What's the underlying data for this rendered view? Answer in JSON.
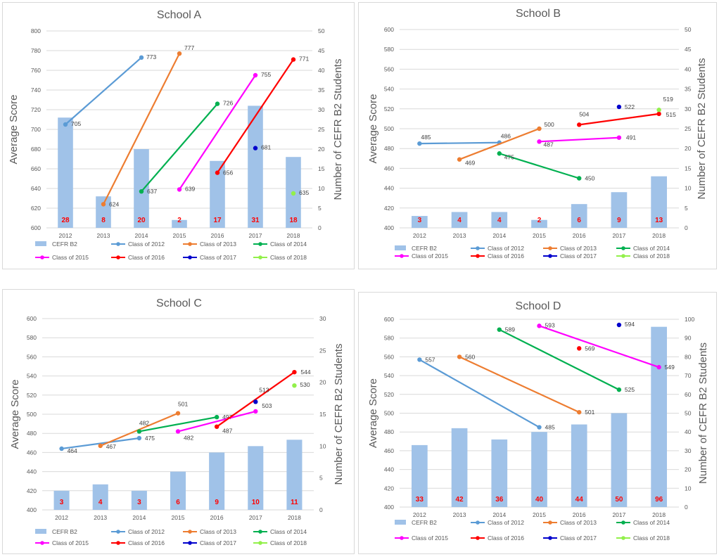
{
  "colors": {
    "bar": "#a0c2e8",
    "Class of 2012": "#5b9bd5",
    "Class of 2013": "#ed7d31",
    "Class of 2014": "#00b050",
    "Class of 2015": "#ff00ff",
    "Class of 2016": "#ff0000",
    "Class of 2017": "#0000cc",
    "Class of 2018": "#92f04a",
    "bar_label": "#ff0000"
  },
  "legend_items": [
    "CEFR B2",
    "Class of 2012",
    "Class of 2013",
    "Class of 2014",
    "Class of 2015",
    "Class of 2016",
    "Class of 2017",
    "Class of 2018"
  ],
  "chart_data": [
    {
      "type": "bar+line",
      "title": "School A",
      "categories": [
        "2012",
        "2013",
        "2014",
        "2015",
        "2016",
        "2017",
        "2018"
      ],
      "ylabel": "Average Score",
      "y2label": "Number of CEFR B2 Students",
      "ylim": [
        600,
        800
      ],
      "yticks": [
        600,
        620,
        640,
        660,
        680,
        700,
        720,
        740,
        760,
        780,
        800
      ],
      "y2lim": [
        0,
        50
      ],
      "y2ticks": [
        0,
        5,
        10,
        15,
        20,
        25,
        30,
        35,
        40,
        45,
        50
      ],
      "bars": {
        "name": "CEFR B2",
        "values": [
          28,
          8,
          20,
          2,
          17,
          31,
          18
        ]
      },
      "series": [
        {
          "name": "Class of 2012",
          "points": [
            [
              "2012",
              705
            ],
            [
              "2014",
              773
            ]
          ]
        },
        {
          "name": "Class of 2013",
          "points": [
            [
              "2013",
              624
            ],
            [
              "2015",
              777
            ]
          ]
        },
        {
          "name": "Class of 2014",
          "points": [
            [
              "2014",
              637
            ],
            [
              "2016",
              726
            ]
          ]
        },
        {
          "name": "Class of 2015",
          "points": [
            [
              "2015",
              639
            ],
            [
              "2017",
              755
            ]
          ]
        },
        {
          "name": "Class of 2016",
          "points": [
            [
              "2016",
              656
            ],
            [
              "2018",
              771
            ]
          ]
        },
        {
          "name": "Class of 2017",
          "points": [
            [
              "2017",
              681
            ]
          ]
        },
        {
          "name": "Class of 2018",
          "points": [
            [
              "2018",
              635
            ]
          ]
        }
      ],
      "legend": "bottom"
    },
    {
      "type": "bar+line",
      "title": "School B",
      "categories": [
        "2012",
        "2013",
        "2014",
        "2015",
        "2016",
        "2017",
        "2018"
      ],
      "ylabel": "Average Score",
      "y2label": "Number of CEFR B2 Students",
      "ylim": [
        400,
        600
      ],
      "yticks": [
        400,
        420,
        440,
        460,
        480,
        500,
        520,
        540,
        560,
        580,
        600
      ],
      "y2lim": [
        0,
        50
      ],
      "y2ticks": [
        0,
        5,
        10,
        15,
        20,
        25,
        30,
        35,
        40,
        45,
        50
      ],
      "bars": {
        "name": "CEFR B2",
        "values": [
          3,
          4,
          4,
          2,
          6,
          9,
          13
        ]
      },
      "series": [
        {
          "name": "Class of 2012",
          "points": [
            [
              "2012",
              485
            ],
            [
              "2014",
              486
            ]
          ]
        },
        {
          "name": "Class of 2013",
          "points": [
            [
              "2013",
              469
            ],
            [
              "2015",
              500
            ]
          ]
        },
        {
          "name": "Class of 2014",
          "points": [
            [
              "2014",
              475
            ],
            [
              "2016",
              450
            ]
          ]
        },
        {
          "name": "Class of 2015",
          "points": [
            [
              "2015",
              487
            ],
            [
              "2017",
              491
            ]
          ]
        },
        {
          "name": "Class of 2016",
          "points": [
            [
              "2016",
              504
            ],
            [
              "2018",
              515
            ]
          ]
        },
        {
          "name": "Class of 2017",
          "points": [
            [
              "2017",
              522
            ]
          ]
        },
        {
          "name": "Class of 2018",
          "points": [
            [
              "2018",
              519
            ]
          ]
        }
      ],
      "legend": "bottom"
    },
    {
      "type": "bar+line",
      "title": "School C",
      "categories": [
        "2012",
        "2013",
        "2014",
        "2015",
        "2016",
        "2017",
        "2018"
      ],
      "ylabel": "Average Score",
      "y2label": "Number of CEFR B2 Students",
      "ylim": [
        400,
        600
      ],
      "yticks": [
        400,
        420,
        440,
        460,
        480,
        500,
        520,
        540,
        560,
        580,
        600
      ],
      "y2lim": [
        0,
        30
      ],
      "y2ticks": [
        0,
        5,
        10,
        15,
        20,
        25,
        30
      ],
      "bars": {
        "name": "CEFR B2",
        "values": [
          3,
          4,
          3,
          6,
          9,
          10,
          11
        ]
      },
      "series": [
        {
          "name": "Class of 2012",
          "points": [
            [
              "2012",
              464
            ],
            [
              "2014",
              475
            ]
          ]
        },
        {
          "name": "Class of 2013",
          "points": [
            [
              "2013",
              467
            ],
            [
              "2015",
              501
            ]
          ]
        },
        {
          "name": "Class of 2014",
          "points": [
            [
              "2014",
              482
            ],
            [
              "2016",
              497
            ]
          ]
        },
        {
          "name": "Class of 2015",
          "points": [
            [
              "2015",
              482
            ],
            [
              "2017",
              503
            ]
          ]
        },
        {
          "name": "Class of 2016",
          "points": [
            [
              "2016",
              487
            ],
            [
              "2018",
              544
            ]
          ]
        },
        {
          "name": "Class of 2017",
          "points": [
            [
              "2017",
              513
            ]
          ]
        },
        {
          "name": "Class of 2018",
          "points": [
            [
              "2018",
              530
            ]
          ]
        }
      ],
      "legend": "bottom"
    },
    {
      "type": "bar+line",
      "title": "School D",
      "categories": [
        "2012",
        "2013",
        "2014",
        "2015",
        "2016",
        "2017",
        "2018"
      ],
      "ylabel": "Average Score",
      "y2label": "Number of CEFR B2 Students",
      "ylim": [
        400,
        600
      ],
      "yticks": [
        400,
        420,
        440,
        460,
        480,
        500,
        520,
        540,
        560,
        580,
        600
      ],
      "y2lim": [
        0,
        100
      ],
      "y2ticks": [
        0,
        10,
        20,
        30,
        40,
        50,
        60,
        70,
        80,
        90,
        100
      ],
      "bars": {
        "name": "CEFR B2",
        "values": [
          33,
          42,
          36,
          40,
          44,
          50,
          96
        ]
      },
      "series": [
        {
          "name": "Class of 2012",
          "points": [
            [
              "2012",
              557
            ],
            [
              "2015",
              485
            ]
          ]
        },
        {
          "name": "Class of 2013",
          "points": [
            [
              "2013",
              560
            ],
            [
              "2016",
              501
            ]
          ]
        },
        {
          "name": "Class of 2014",
          "points": [
            [
              "2014",
              589
            ],
            [
              "2017",
              525
            ]
          ]
        },
        {
          "name": "Class of 2015",
          "points": [
            [
              "2015",
              593
            ],
            [
              "2018",
              549
            ]
          ]
        },
        {
          "name": "Class of 2016",
          "points": [
            [
              "2016",
              569
            ]
          ]
        },
        {
          "name": "Class of 2017",
          "points": [
            [
              "2017",
              594
            ]
          ]
        },
        {
          "name": "Class of 2018",
          "points": []
        }
      ],
      "legend": "bottom"
    }
  ]
}
